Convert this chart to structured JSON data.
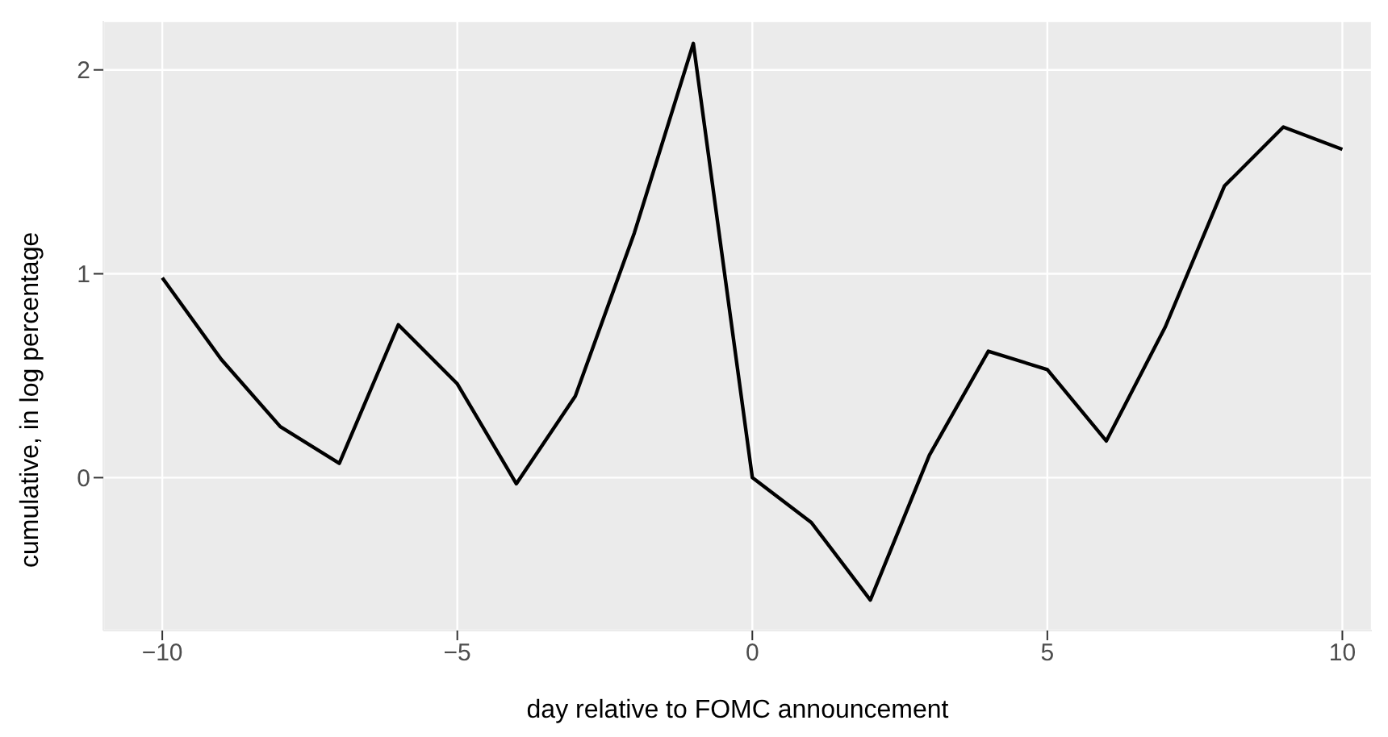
{
  "chart_data": {
    "type": "line",
    "xlabel": "day relative to FOMC announcement",
    "ylabel": "cumulative, in log percentage",
    "x": [
      -10,
      -9,
      -8,
      -7,
      -6,
      -5,
      -4,
      -3,
      -2,
      -1,
      0,
      1,
      2,
      3,
      4,
      5,
      6,
      7,
      8,
      9,
      10
    ],
    "series": [
      {
        "color": "#000000",
        "values": [
          0.98,
          0.58,
          0.25,
          0.07,
          0.75,
          0.46,
          -0.03,
          0.4,
          1.2,
          2.13,
          0,
          -0.22,
          -0.6,
          0.11,
          0.62,
          0.53,
          0.18,
          0.74,
          1.43,
          1.72,
          1.61
        ]
      }
    ],
    "xlim": [
      -11,
      10.5
    ],
    "xticks": [
      {
        "value": -10,
        "label": "−10"
      },
      {
        "value": -5,
        "label": "−5"
      },
      0,
      5,
      10
    ],
    "ylim": [
      -0.75,
      2.24
    ],
    "yticks": [
      0,
      1,
      2
    ],
    "grid": true,
    "legend": false,
    "marker": "none",
    "line_style": "solid"
  }
}
